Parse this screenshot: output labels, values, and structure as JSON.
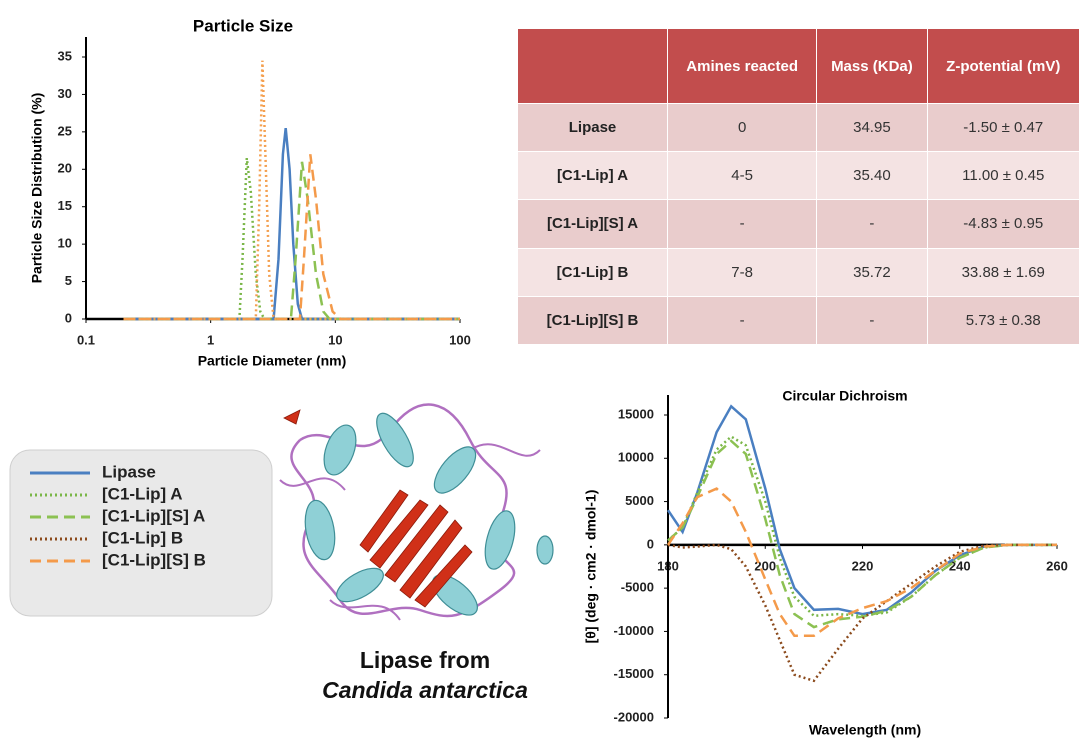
{
  "chart_data": [
    {
      "type": "line",
      "title": "Particle Size",
      "xlabel": "Particle Diameter (nm)",
      "ylabel": "Particle Size Distribution (%)",
      "xscale": "log",
      "xlim": [
        0.1,
        100
      ],
      "xticks": [
        0.1,
        1,
        10,
        100
      ],
      "ylim": [
        0,
        35
      ],
      "yticks": [
        0,
        5,
        10,
        15,
        20,
        25,
        30,
        35
      ],
      "series": [
        {
          "name": "Lipase",
          "color": "#4a7fc1",
          "dash": "solid",
          "x": [
            0.2,
            3.2,
            3.5,
            3.8,
            4.0,
            4.3,
            4.6,
            5.0,
            5.4,
            100
          ],
          "values": [
            0,
            0,
            8,
            22,
            25.5,
            20,
            10,
            2,
            0,
            0
          ]
        },
        {
          "name": "[C1-Lip] A",
          "color": "#7ab648",
          "dash": "dotted",
          "x": [
            0.2,
            1.7,
            1.8,
            1.95,
            2.1,
            2.3,
            2.5,
            2.7,
            100
          ],
          "values": [
            0,
            0,
            8,
            21.5,
            17,
            6,
            1,
            0,
            0
          ]
        },
        {
          "name": "[C1-Lip][S] A",
          "color": "#8cc152",
          "dash": "dashed",
          "x": [
            0.2,
            4.4,
            4.8,
            5.4,
            6.0,
            7.0,
            8.0,
            9.0,
            100
          ],
          "values": [
            0,
            0,
            8,
            21,
            16,
            6,
            1,
            0,
            0
          ]
        },
        {
          "name": "[C1-Lip] B",
          "color": "#f4a050",
          "dash": "dotted",
          "x": [
            0.2,
            2.3,
            2.45,
            2.6,
            2.75,
            2.95,
            3.2,
            100
          ],
          "values": [
            0,
            0,
            15,
            34.5,
            22,
            6,
            0,
            0
          ]
        },
        {
          "name": "[C1-Lip][S] B",
          "color": "#f49a4a",
          "dash": "dashed",
          "x": [
            0.2,
            5.2,
            5.6,
            6.3,
            7.0,
            8.0,
            9.5,
            11,
            100
          ],
          "values": [
            0,
            0,
            8,
            22,
            16,
            6,
            1,
            0,
            0
          ]
        }
      ]
    },
    {
      "type": "line",
      "title": "Circular Dichroism",
      "xlabel": "Wavelength (nm)",
      "ylabel": "[θ] (deg · cm2 · dmol-1)",
      "xscale": "linear",
      "xlim": [
        180,
        260
      ],
      "xticks": [
        180,
        200,
        220,
        240,
        260
      ],
      "ylim": [
        -20000,
        15000
      ],
      "yticks": [
        -20000,
        -15000,
        -10000,
        -5000,
        0,
        5000,
        10000,
        15000
      ],
      "x": [
        180,
        183,
        186,
        190,
        193,
        196,
        200,
        203,
        206,
        210,
        215,
        220,
        225,
        230,
        235,
        240,
        245,
        250,
        255,
        260
      ],
      "series": [
        {
          "name": "Lipase",
          "color": "#4a7fc1",
          "dash": "solid",
          "values": [
            4000,
            1500,
            6000,
            13000,
            16000,
            14500,
            6500,
            -500,
            -5000,
            -7500,
            -7400,
            -8000,
            -7500,
            -5500,
            -3000,
            -1200,
            -200,
            0,
            0,
            0
          ]
        },
        {
          "name": "[C1-Lip] A",
          "color": "#7ab648",
          "dash": "dotted",
          "values": [
            500,
            2000,
            6000,
            11000,
            12500,
            11500,
            5000,
            -1500,
            -6000,
            -8200,
            -8000,
            -8200,
            -7800,
            -6000,
            -3500,
            -1500,
            -300,
            0,
            0,
            0
          ]
        },
        {
          "name": "[C1-Lip][S] A",
          "color": "#8cc152",
          "dash": "dashed",
          "values": [
            500,
            2000,
            5500,
            10500,
            12000,
            10500,
            3000,
            -3500,
            -8000,
            -9500,
            -8600,
            -8300,
            -7600,
            -6000,
            -3500,
            -1500,
            -300,
            0,
            0,
            0
          ]
        },
        {
          "name": "[C1-Lip] B",
          "color": "#8b4a1c",
          "dash": "dotted",
          "values": [
            0,
            -300,
            -200,
            0,
            -500,
            -2500,
            -7000,
            -11000,
            -15000,
            -15700,
            -12000,
            -8500,
            -6500,
            -4500,
            -2500,
            -800,
            -100,
            0,
            0,
            0
          ]
        },
        {
          "name": "[C1-Lip][S] B",
          "color": "#f49a4a",
          "dash": "dashed",
          "values": [
            0,
            2500,
            5500,
            6500,
            5000,
            1500,
            -4000,
            -8000,
            -10500,
            -10500,
            -8500,
            -7300,
            -6500,
            -5000,
            -3000,
            -1000,
            -200,
            0,
            0,
            0
          ]
        }
      ]
    }
  ],
  "table": {
    "header": [
      "Amines reacted",
      "Mass (KDa)",
      "Z-potential (mV)"
    ],
    "rows": [
      [
        "Lipase",
        "0",
        "34.95",
        "-1.50 ± 0.47"
      ],
      [
        "[C1-Lip] A",
        "4-5",
        "35.40",
        "11.00 ± 0.45"
      ],
      [
        "[C1-Lip][S] A",
        "-",
        "-",
        "-4.83 ± 0.95"
      ],
      [
        "[C1-Lip] B",
        "7-8",
        "35.72",
        "33.88 ± 1.69"
      ],
      [
        "[C1-Lip][S] B",
        "-",
        "-",
        "5.73 ± 0.38"
      ]
    ]
  },
  "caption": {
    "line1": "Lipase from",
    "line2": "Candida antarctica"
  }
}
